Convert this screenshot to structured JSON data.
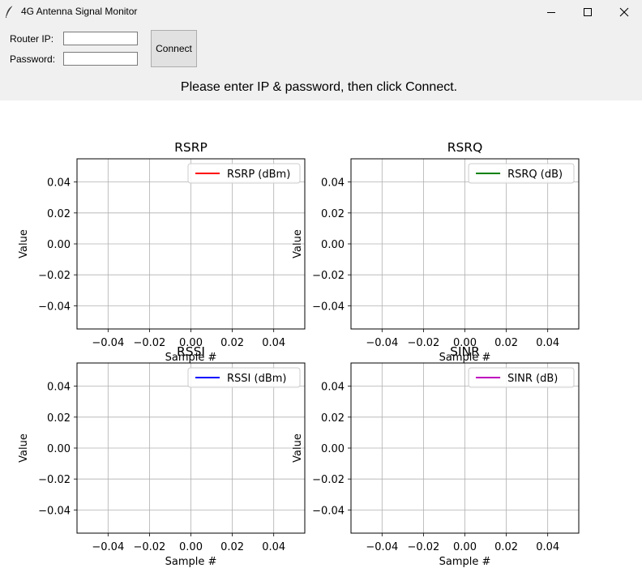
{
  "window": {
    "title": "4G Antenna Signal Monitor",
    "minimize_icon": "minimize-icon",
    "maximize_icon": "maximize-icon",
    "close_icon": "close-icon"
  },
  "form": {
    "router_ip_label": "Router IP:",
    "router_ip_value": "",
    "password_label": "Password:",
    "password_value": "",
    "connect_label": "Connect"
  },
  "status": {
    "message": "Please enter IP & password, then click Connect."
  },
  "chart_data": [
    {
      "type": "line",
      "title": "RSRP",
      "xlabel": "Sample #",
      "ylabel": "Value",
      "xlim": [
        -0.055,
        0.055
      ],
      "ylim": [
        -0.055,
        0.055
      ],
      "xticks": [
        -0.04,
        -0.02,
        0.0,
        0.02,
        0.04
      ],
      "yticks": [
        -0.04,
        -0.02,
        0.0,
        0.02,
        0.04
      ],
      "x_tick_labels": [
        "−0.04",
        "−0.02",
        "0.00",
        "0.02",
        "0.04"
      ],
      "y_tick_labels": [
        "−0.04",
        "−0.02",
        "0.00",
        "0.02",
        "0.04"
      ],
      "grid": true,
      "legend_position": "top-right",
      "series": [
        {
          "name": "RSRP (dBm)",
          "color": "#ff0000",
          "x": [],
          "values": []
        }
      ]
    },
    {
      "type": "line",
      "title": "RSRQ",
      "xlabel": "Sample #",
      "ylabel": "Value",
      "xlim": [
        -0.055,
        0.055
      ],
      "ylim": [
        -0.055,
        0.055
      ],
      "xticks": [
        -0.04,
        -0.02,
        0.0,
        0.02,
        0.04
      ],
      "yticks": [
        -0.04,
        -0.02,
        0.0,
        0.02,
        0.04
      ],
      "x_tick_labels": [
        "−0.04",
        "−0.02",
        "0.00",
        "0.02",
        "0.04"
      ],
      "y_tick_labels": [
        "−0.04",
        "−0.02",
        "0.00",
        "0.02",
        "0.04"
      ],
      "grid": true,
      "legend_position": "top-right",
      "series": [
        {
          "name": "RSRQ (dB)",
          "color": "#008000",
          "x": [],
          "values": []
        }
      ]
    },
    {
      "type": "line",
      "title": "RSSI",
      "xlabel": "Sample #",
      "ylabel": "Value",
      "xlim": [
        -0.055,
        0.055
      ],
      "ylim": [
        -0.055,
        0.055
      ],
      "xticks": [
        -0.04,
        -0.02,
        0.0,
        0.02,
        0.04
      ],
      "yticks": [
        -0.04,
        -0.02,
        0.0,
        0.02,
        0.04
      ],
      "x_tick_labels": [
        "−0.04",
        "−0.02",
        "0.00",
        "0.02",
        "0.04"
      ],
      "y_tick_labels": [
        "−0.04",
        "−0.02",
        "0.00",
        "0.02",
        "0.04"
      ],
      "grid": true,
      "legend_position": "top-right",
      "series": [
        {
          "name": "RSSI (dBm)",
          "color": "#0000ff",
          "x": [],
          "values": []
        }
      ]
    },
    {
      "type": "line",
      "title": "SINR",
      "xlabel": "Sample #",
      "ylabel": "Value",
      "xlim": [
        -0.055,
        0.055
      ],
      "ylim": [
        -0.055,
        0.055
      ],
      "xticks": [
        -0.04,
        -0.02,
        0.0,
        0.02,
        0.04
      ],
      "yticks": [
        -0.04,
        -0.02,
        0.0,
        0.02,
        0.04
      ],
      "x_tick_labels": [
        "−0.04",
        "−0.02",
        "0.00",
        "0.02",
        "0.04"
      ],
      "y_tick_labels": [
        "−0.04",
        "−0.02",
        "0.00",
        "0.02",
        "0.04"
      ],
      "grid": true,
      "legend_position": "top-right",
      "series": [
        {
          "name": "SINR (dB)",
          "color": "#bf00bf",
          "x": [],
          "values": []
        }
      ]
    }
  ]
}
